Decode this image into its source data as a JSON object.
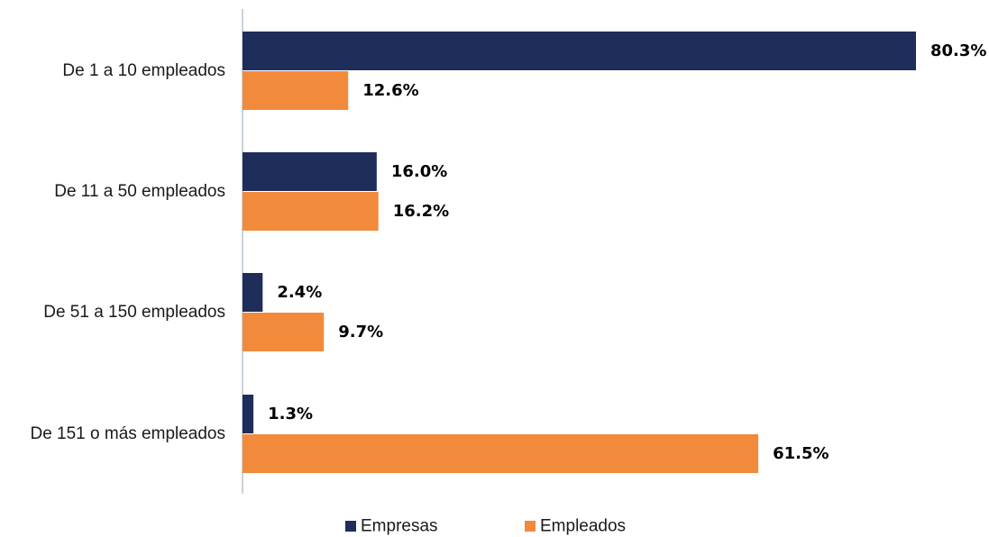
{
  "chart_data": {
    "type": "bar",
    "orientation": "horizontal",
    "categories": [
      "De 1 a 10 empleados",
      "De 11 a 50 empleados",
      "De 51 a 150 empleados",
      "De 151 o más empleados"
    ],
    "series": [
      {
        "name": "Empresas",
        "color": "#1f2d5a",
        "values": [
          80.3,
          16.0,
          2.4,
          1.3
        ],
        "labels": [
          "80.3%",
          "16.0%",
          "2.4%",
          "1.3%"
        ]
      },
      {
        "name": "Empleados",
        "color": "#f28a3c",
        "values": [
          12.6,
          16.2,
          9.7,
          61.5
        ],
        "labels": [
          "12.6%",
          "16.2%",
          "9.7%",
          "61.5%"
        ]
      }
    ],
    "xlim": [
      0,
      80.3
    ],
    "grid": false,
    "legend": "bottom-center"
  }
}
